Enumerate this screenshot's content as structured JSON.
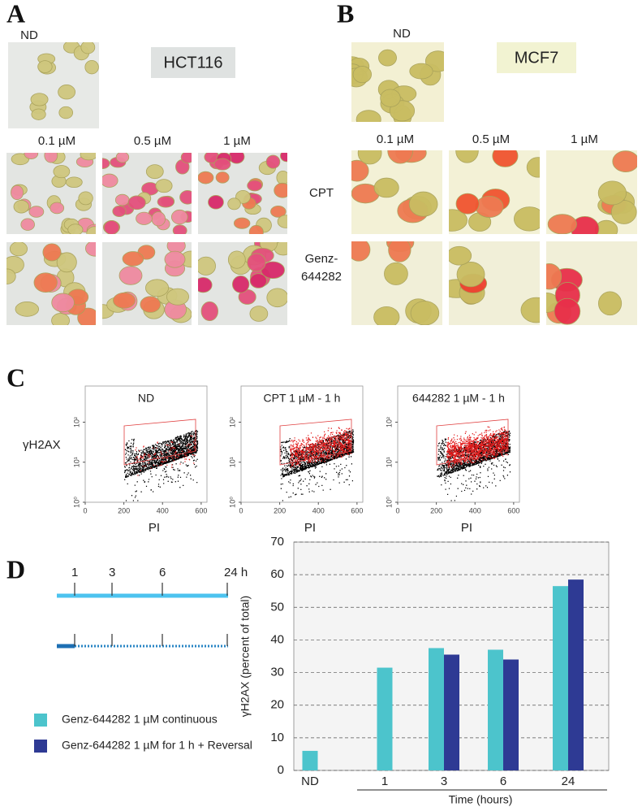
{
  "panel_a": {
    "label": "A",
    "cell_line": "HCT116",
    "control": "ND",
    "concentrations": [
      "0.1 µM",
      "0.5 µM",
      "1 µM"
    ]
  },
  "panel_b": {
    "label": "B",
    "cell_line": "MCF7",
    "control": "ND",
    "concentrations": [
      "0.1 µM",
      "0.5 µM",
      "1 µM"
    ],
    "treatments": [
      {
        "lines": [
          "CPT"
        ]
      },
      {
        "lines": [
          "Genz-",
          "644282"
        ]
      }
    ]
  },
  "panel_c": {
    "label": "C",
    "y_label": "γH2AX",
    "x_label": "PI",
    "plots": [
      {
        "title": "ND"
      },
      {
        "title": "CPT 1 µM - 1 h"
      },
      {
        "title": "644282 1 µM - 1 h"
      }
    ],
    "xlim": [
      0,
      630
    ],
    "xticks": [
      0,
      200,
      400,
      600
    ],
    "ylim": [
      1,
      800
    ],
    "log_y": true,
    "yticks": [
      {
        "value": 1,
        "label": "10⁰"
      },
      {
        "value": 10,
        "label": "10¹"
      },
      {
        "value": 100,
        "label": "10²"
      }
    ]
  },
  "panel_d": {
    "label": "D",
    "timeline_ticks": [
      "1",
      "3",
      "6",
      "24 h"
    ]
  },
  "chart_data": {
    "type": "bar",
    "categories": [
      "ND",
      "1",
      "3",
      "6",
      "24"
    ],
    "series": [
      {
        "name": "Genz-644282 1 µM continuous",
        "color": "#4cc4cc",
        "values": [
          6,
          31.5,
          37.5,
          37,
          56.5
        ]
      },
      {
        "name": "Genz-644282 1 µM for 1 h + Reversal",
        "color": "#2e3a94",
        "values": [
          null,
          null,
          35.5,
          34,
          58.5
        ]
      }
    ],
    "ylim": [
      0,
      70
    ],
    "yticks": [
      0,
      10,
      20,
      30,
      40,
      50,
      60,
      70
    ],
    "y_label": "γH2AX (percent of total)",
    "x_label": "Time (hours)",
    "grid": true
  }
}
